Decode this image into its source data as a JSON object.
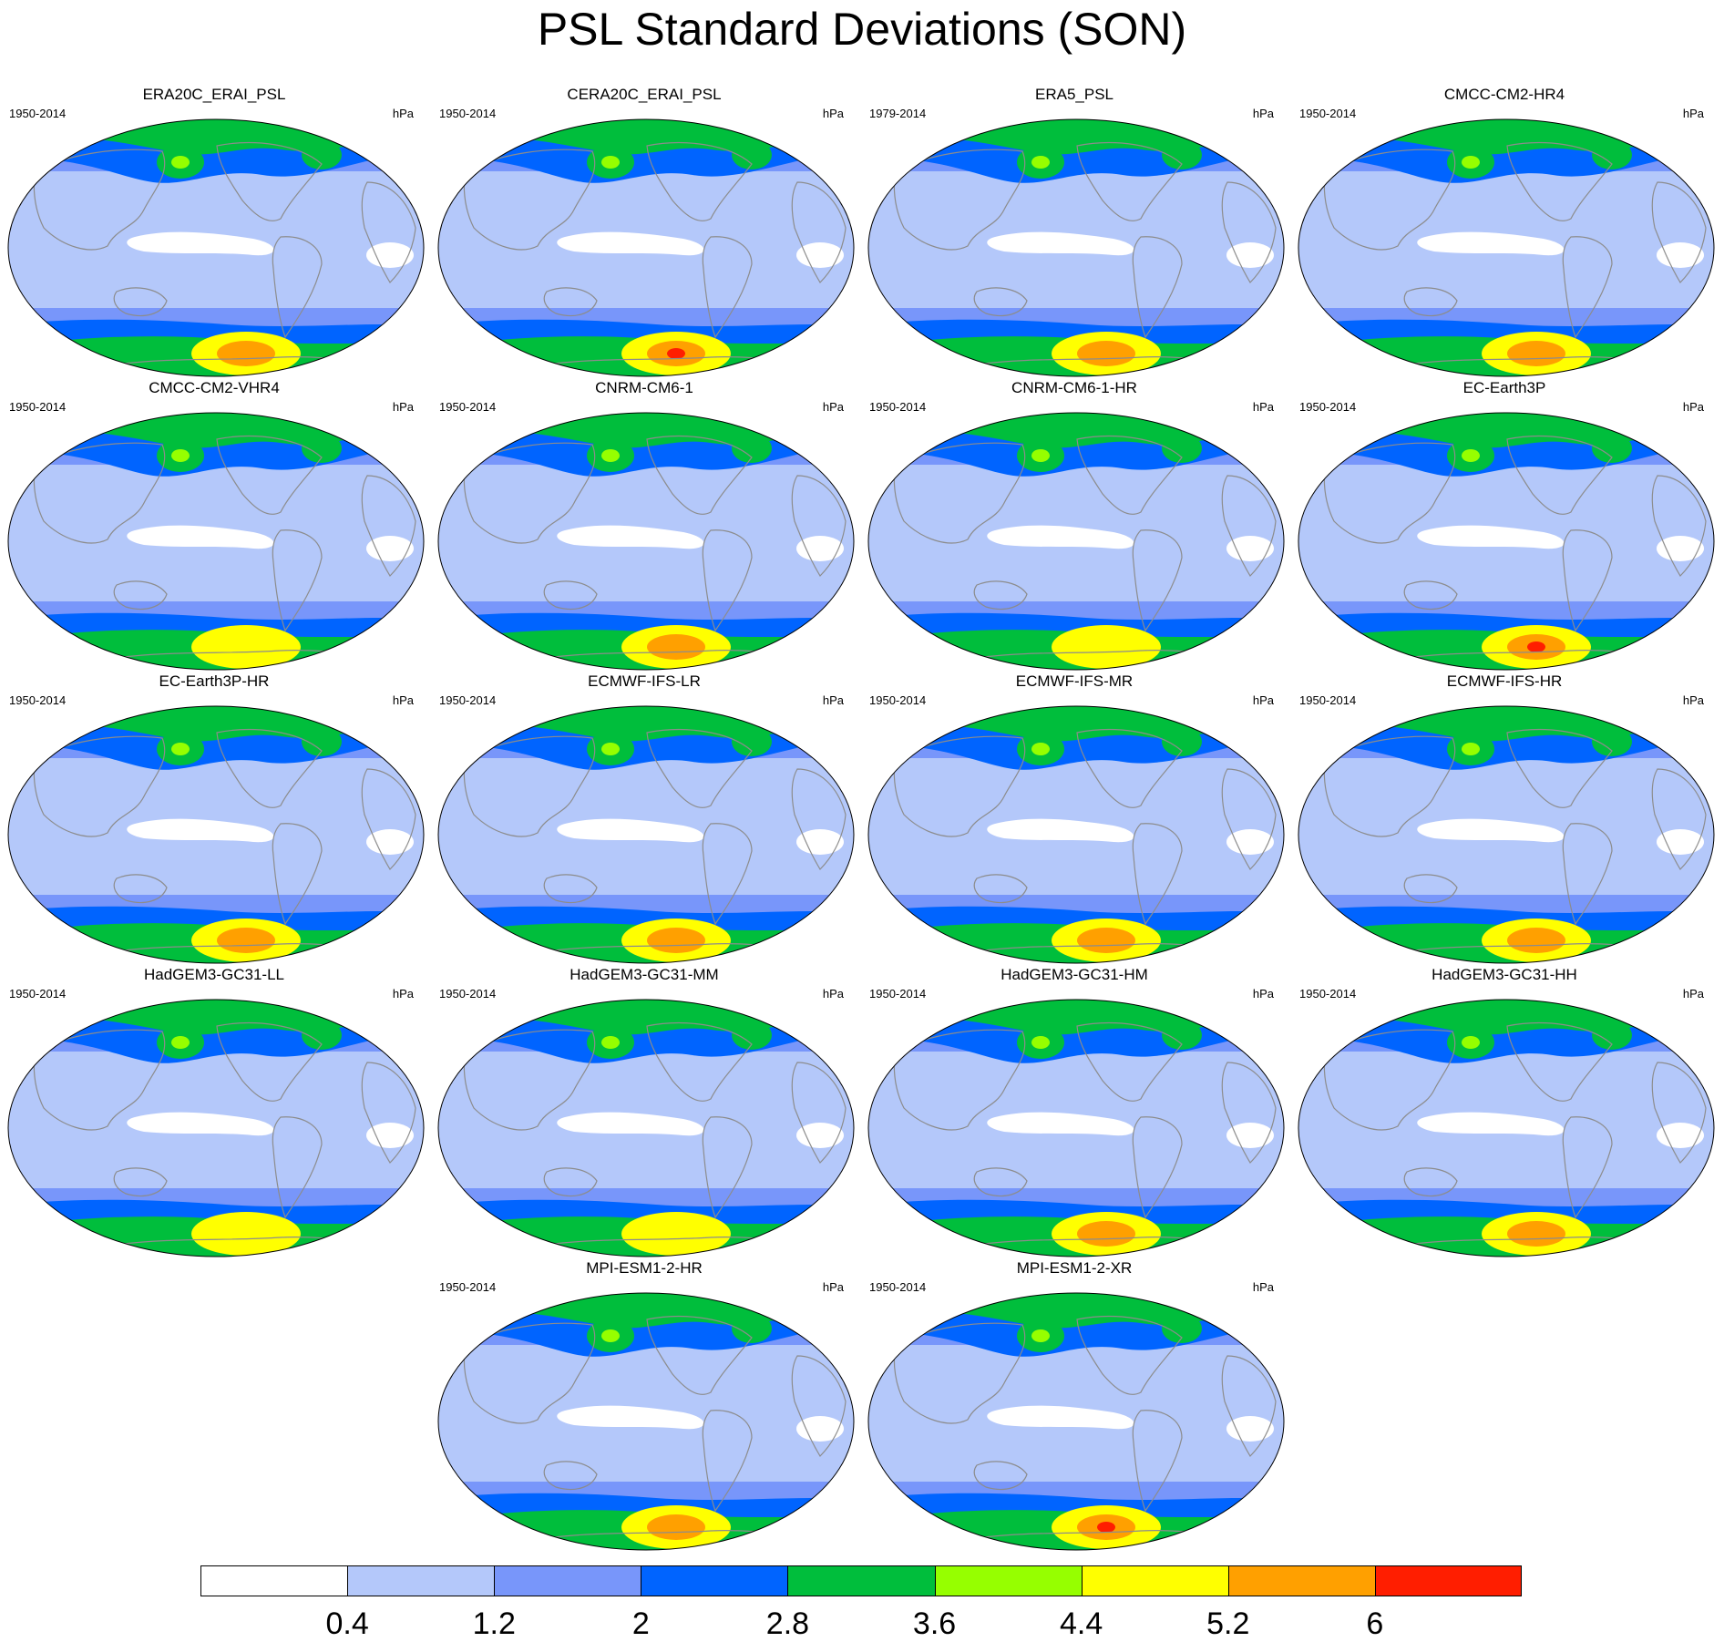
{
  "title": "PSL Standard Deviations (SON)",
  "units": "hPa",
  "panels": [
    {
      "name": "ERA20C_ERAI_PSL",
      "period": "1950-2014",
      "south_peak": 5.5
    },
    {
      "name": "CERA20C_ERAI_PSL",
      "period": "1950-2014",
      "south_peak": 6.3
    },
    {
      "name": "ERA5_PSL",
      "period": "1979-2014",
      "south_peak": 5.4
    },
    {
      "name": "CMCC-CM2-HR4",
      "period": "1950-2014",
      "south_peak": 5.5
    },
    {
      "name": "CMCC-CM2-VHR4",
      "period": "1950-2014",
      "south_peak": 4.8
    },
    {
      "name": "CNRM-CM6-1",
      "period": "1950-2014",
      "south_peak": 5.6
    },
    {
      "name": "CNRM-CM6-1-HR",
      "period": "1950-2014",
      "south_peak": 4.8
    },
    {
      "name": "EC-Earth3P",
      "period": "1950-2014",
      "south_peak": 6.2
    },
    {
      "name": "EC-Earth3P-HR",
      "period": "1950-2014",
      "south_peak": 5.6
    },
    {
      "name": "ECMWF-IFS-LR",
      "period": "1950-2014",
      "south_peak": 5.6
    },
    {
      "name": "ECMWF-IFS-MR",
      "period": "1950-2014",
      "south_peak": 5.6
    },
    {
      "name": "ECMWF-IFS-HR",
      "period": "1950-2014",
      "south_peak": 5.5
    },
    {
      "name": "HadGEM3-GC31-LL",
      "period": "1950-2014",
      "south_peak": 4.9
    },
    {
      "name": "HadGEM3-GC31-MM",
      "period": "1950-2014",
      "south_peak": 4.6
    },
    {
      "name": "HadGEM3-GC31-HM",
      "period": "1950-2014",
      "south_peak": 5.5
    },
    {
      "name": "HadGEM3-GC31-HH",
      "period": "1950-2014",
      "south_peak": 5.4
    },
    {
      "name": "MPI-ESM1-2-HR",
      "period": "1950-2014",
      "south_peak": 5.6
    },
    {
      "name": "MPI-ESM1-2-XR",
      "period": "1950-2014",
      "south_peak": 6.1
    }
  ],
  "colorbar": {
    "levels": [
      "0.4",
      "1.2",
      "2",
      "2.8",
      "3.6",
      "4.4",
      "5.2",
      "6"
    ],
    "colors": [
      "#ffffff",
      "#b4c8fa",
      "#7896fa",
      "#0064ff",
      "#00be3c",
      "#96ff00",
      "#ffff00",
      "#ffa000",
      "#ff1e00"
    ]
  },
  "map_colors": {
    "land_outline": "#8c8c8c",
    "map_border": "#000000"
  }
}
